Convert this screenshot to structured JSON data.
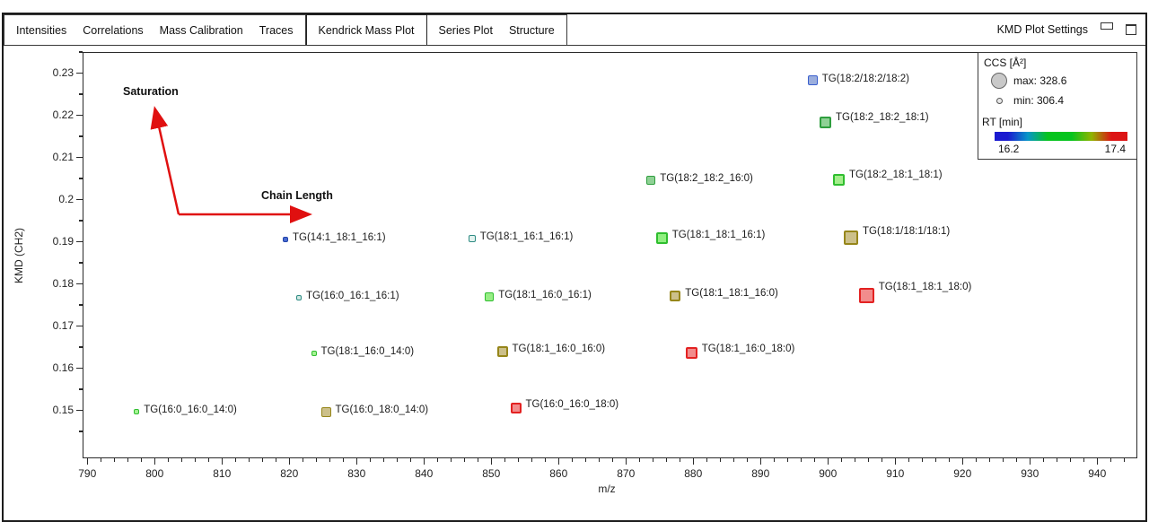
{
  "tab_bar": {
    "tabs": [
      {
        "label": "Intensities"
      },
      {
        "label": "Correlations"
      },
      {
        "label": "Mass Calibration"
      },
      {
        "label": "Traces"
      },
      {
        "label": "Kendrick Mass Plot"
      },
      {
        "label": "Series Plot"
      },
      {
        "label": "Structure"
      }
    ],
    "settings_label": "KMD Plot Settings"
  },
  "chart_data": {
    "type": "scatter",
    "title": "",
    "xlabel": "m/z",
    "ylabel": "KMD (CH2)",
    "xlim": [
      789.3,
      945.7
    ],
    "ylim": [
      0.139,
      0.235
    ],
    "x_major_ticks": [
      790,
      800,
      810,
      820,
      830,
      840,
      850,
      860,
      870,
      880,
      890,
      900,
      910,
      920,
      930,
      940
    ],
    "x_minor_step": 2,
    "y_major_ticks": [
      "0.15",
      "0.16",
      "0.17",
      "0.18",
      "0.19",
      "0.2",
      "0.21",
      "0.22",
      "0.23"
    ],
    "y_minor_step": 0.005,
    "grid": "off",
    "legend_position": "top-right inside",
    "points": [
      {
        "label": "TG(18:2/18:2/18:2)",
        "mz": 897.6,
        "kmd": 0.2285,
        "size": 11,
        "fill": "#9BAEDD",
        "stroke": "#3A5FCD",
        "label_dy": -2
      },
      {
        "label": "TG(18:2_18:2_18:1)",
        "mz": 899.5,
        "kmd": 0.2185,
        "size": 13,
        "fill": "#8FD195",
        "stroke": "#2F9E3E",
        "label_dy": -6
      },
      {
        "label": "TG(18:2_18:2_16:0)",
        "mz": 873.6,
        "kmd": 0.2048,
        "size": 10,
        "fill": "#8FD195",
        "stroke": "#2F9E3E",
        "label_dy": -2
      },
      {
        "label": "TG(18:2_18:1_18:1)",
        "mz": 901.5,
        "kmd": 0.2048,
        "size": 13,
        "fill": "#A4EE8C",
        "stroke": "#2FBE2F",
        "label_dy": -6
      },
      {
        "label": "TG(14:1_18:1_16:1)",
        "mz": 819.3,
        "kmd": 0.1907,
        "size": 6,
        "fill": "#4A6BD0",
        "stroke": "#2244AA",
        "label_dy": -2
      },
      {
        "label": "TG(18:1_16:1_16:1)",
        "mz": 847.0,
        "kmd": 0.191,
        "size": 8,
        "fill": "#E2F2EE",
        "stroke": "#2E8B83",
        "label_dy": -2
      },
      {
        "label": "TG(18:1_18:1_16:1)",
        "mz": 875.2,
        "kmd": 0.191,
        "size": 13,
        "fill": "#90F080",
        "stroke": "#2FBE2F",
        "label_dy": -4
      },
      {
        "label": "TG(18:1/18:1/18:1)",
        "mz": 903.3,
        "kmd": 0.1912,
        "size": 16,
        "fill": "#CCC08A",
        "stroke": "#96861A",
        "label_dy": -7
      },
      {
        "label": "TG(16:0_16:1_16:1)",
        "mz": 821.3,
        "kmd": 0.1769,
        "size": 6,
        "fill": "#CFE8E2",
        "stroke": "#2E8B83",
        "label_dy": -2
      },
      {
        "label": "TG(18:1_16:0_16:1)",
        "mz": 849.6,
        "kmd": 0.1771,
        "size": 10,
        "fill": "#97EE85",
        "stroke": "#2FBE2F",
        "label_dy": -2
      },
      {
        "label": "TG(18:1_18:1_16:0)",
        "mz": 877.2,
        "kmd": 0.1774,
        "size": 12,
        "fill": "#CCC08A",
        "stroke": "#96861A",
        "label_dy": -3
      },
      {
        "label": "TG(18:1_18:1_18:0)",
        "mz": 905.6,
        "kmd": 0.1774,
        "size": 17,
        "fill": "#F28C8C",
        "stroke": "#E32222",
        "label_dy": -10
      },
      {
        "label": "TG(18:1_16:0_14:0)",
        "mz": 823.5,
        "kmd": 0.1637,
        "size": 6,
        "fill": "#A5F293",
        "stroke": "#2FBE2F",
        "label_dy": -2
      },
      {
        "label": "TG(18:1_16:0_16:0)",
        "mz": 851.5,
        "kmd": 0.1641,
        "size": 12,
        "fill": "#CCC08A",
        "stroke": "#96861A",
        "label_dy": -3
      },
      {
        "label": "TG(18:1_16:0_18:0)",
        "mz": 879.6,
        "kmd": 0.1637,
        "size": 13,
        "fill": "#F28C8C",
        "stroke": "#E32222",
        "label_dy": -5
      },
      {
        "label": "TG(16:0_16:0_14:0)",
        "mz": 797.2,
        "kmd": 0.1498,
        "size": 6,
        "fill": "#A5F293",
        "stroke": "#2FBE2F",
        "label_dy": -2
      },
      {
        "label": "TG(16:0_18:0_14:0)",
        "mz": 825.3,
        "kmd": 0.1498,
        "size": 11,
        "fill": "#CCC08A",
        "stroke": "#96861A",
        "label_dy": -2
      },
      {
        "label": "TG(16:0_16:0_18:0)",
        "mz": 853.5,
        "kmd": 0.1507,
        "size": 12,
        "fill": "#F28C8C",
        "stroke": "#E32222",
        "label_dy": -4
      }
    ],
    "legend": {
      "ccs_title": "CCS [Å²]",
      "ccs_max_label": "max: 328.6",
      "ccs_min_label": "min: 306.4",
      "rt_title": "RT [min]",
      "rt_min": "16.2",
      "rt_max": "17.4",
      "gradient": [
        {
          "color": "#1A1AD0",
          "pos": 0
        },
        {
          "color": "#1A1AD0",
          "pos": 10
        },
        {
          "color": "#0896C8",
          "pos": 25
        },
        {
          "color": "#06C41E",
          "pos": 40
        },
        {
          "color": "#06C41E",
          "pos": 58
        },
        {
          "color": "#91B400",
          "pos": 73
        },
        {
          "color": "#DC1414",
          "pos": 88
        },
        {
          "color": "#DC1414",
          "pos": 100
        }
      ]
    },
    "annotations": {
      "saturation_label": "Saturation",
      "chain_length_label": "Chain Length",
      "arrow_color": "#E01010"
    }
  }
}
